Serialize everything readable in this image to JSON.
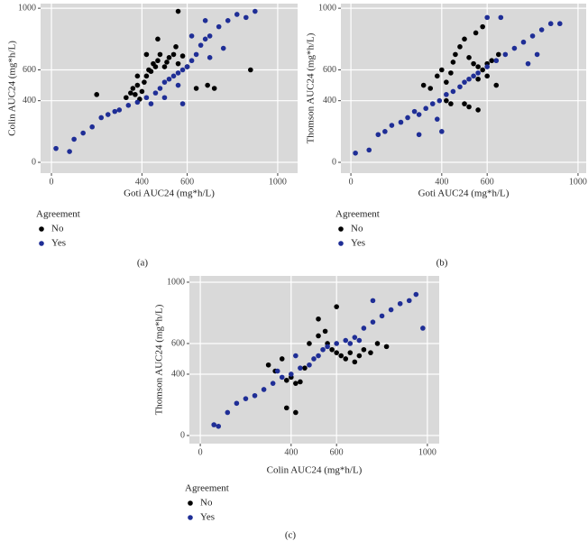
{
  "chart_data": [
    {
      "type": "scatter",
      "label": "(a)",
      "xlabel": "Goti AUC24 (mg*h/L)",
      "ylabel": "Colin AUC24 (mg*h/L)",
      "legend_title": "Agreement",
      "xlim": [
        -48,
        1088
      ],
      "ylim": [
        -70,
        1030
      ],
      "xticks": [
        0,
        400,
        600,
        1000
      ],
      "yticks": [
        0,
        400,
        600,
        1000
      ],
      "grid": true,
      "series": [
        {
          "name": "No",
          "color": "#000000",
          "x": [
            330,
            350,
            360,
            370,
            380,
            390,
            400,
            410,
            420,
            430,
            440,
            450,
            460,
            470,
            480,
            500,
            510,
            520,
            540,
            550,
            560,
            580,
            600,
            200,
            380,
            690,
            720,
            880,
            560,
            640,
            420,
            470
          ],
          "values": [
            420,
            450,
            480,
            440,
            500,
            410,
            460,
            520,
            560,
            600,
            590,
            640,
            620,
            660,
            700,
            620,
            650,
            680,
            700,
            750,
            640,
            690,
            620,
            440,
            560,
            500,
            480,
            600,
            980,
            480,
            700,
            800
          ]
        },
        {
          "name": "Yes",
          "color": "#1f2e96",
          "x": [
            20,
            80,
            100,
            140,
            180,
            220,
            250,
            280,
            300,
            340,
            380,
            420,
            460,
            480,
            500,
            520,
            540,
            560,
            580,
            600,
            620,
            640,
            660,
            680,
            700,
            740,
            780,
            820,
            860,
            900,
            760,
            700,
            440,
            500,
            560,
            620,
            680,
            580
          ],
          "values": [
            90,
            70,
            150,
            190,
            230,
            290,
            310,
            330,
            340,
            370,
            390,
            420,
            450,
            480,
            520,
            540,
            560,
            580,
            600,
            620,
            660,
            700,
            760,
            800,
            820,
            880,
            920,
            960,
            940,
            980,
            740,
            680,
            380,
            420,
            500,
            820,
            920,
            380
          ]
        }
      ]
    },
    {
      "type": "scatter",
      "label": "(b)",
      "xlabel": "Goti AUC24 (mg*h/L)",
      "ylabel": "Thomson AUC24 (mg*h/L)",
      "legend_title": "Agreement",
      "xlim": [
        -44,
        1036
      ],
      "ylim": [
        -70,
        1030
      ],
      "xticks": [
        0,
        400,
        600,
        1000
      ],
      "yticks": [
        0,
        400,
        600,
        1000
      ],
      "grid": true,
      "series": [
        {
          "name": "No",
          "color": "#000000",
          "x": [
            320,
            350,
            380,
            400,
            420,
            440,
            450,
            460,
            480,
            500,
            520,
            540,
            560,
            580,
            600,
            620,
            650,
            600,
            560,
            420,
            440,
            500,
            520,
            560,
            640,
            580,
            550
          ],
          "values": [
            500,
            480,
            560,
            600,
            520,
            580,
            650,
            700,
            750,
            800,
            680,
            640,
            620,
            600,
            640,
            660,
            700,
            560,
            540,
            400,
            380,
            380,
            360,
            340,
            500,
            880,
            840
          ]
        },
        {
          "name": "Yes",
          "color": "#1f2e96",
          "x": [
            20,
            80,
            120,
            150,
            180,
            220,
            250,
            280,
            300,
            330,
            360,
            390,
            420,
            450,
            480,
            500,
            520,
            540,
            560,
            600,
            640,
            680,
            720,
            760,
            800,
            840,
            880,
            920,
            820,
            780,
            600,
            380,
            400,
            660,
            300
          ],
          "values": [
            60,
            80,
            180,
            200,
            240,
            260,
            290,
            330,
            310,
            350,
            380,
            400,
            440,
            460,
            490,
            520,
            540,
            560,
            580,
            620,
            660,
            700,
            740,
            780,
            820,
            860,
            900,
            900,
            700,
            640,
            940,
            280,
            200,
            940,
            180
          ]
        }
      ]
    },
    {
      "type": "scatter",
      "label": "(c)",
      "xlabel": "Colin AUC24 (mg*h/L)",
      "ylabel": "Thomson AUC24 (mg*h/L)",
      "legend_title": "Agreement",
      "xlim": [
        -48,
        1052
      ],
      "ylim": [
        -53,
        1041
      ],
      "xticks": [
        0,
        400,
        600,
        1000
      ],
      "yticks": [
        0,
        400,
        600,
        1000
      ],
      "grid": true,
      "series": [
        {
          "name": "No",
          "color": "#000000",
          "x": [
            300,
            330,
            360,
            380,
            400,
            420,
            440,
            460,
            480,
            520,
            550,
            560,
            580,
            600,
            620,
            640,
            660,
            680,
            700,
            720,
            750,
            780,
            820,
            600,
            380,
            420,
            520
          ],
          "values": [
            460,
            420,
            500,
            360,
            380,
            340,
            350,
            440,
            600,
            650,
            680,
            600,
            560,
            540,
            520,
            500,
            540,
            480,
            520,
            560,
            540,
            600,
            580,
            840,
            180,
            150,
            760
          ]
        },
        {
          "name": "Yes",
          "color": "#1f2e96",
          "x": [
            60,
            80,
            120,
            160,
            200,
            240,
            280,
            320,
            360,
            400,
            440,
            480,
            500,
            520,
            540,
            560,
            600,
            640,
            680,
            720,
            760,
            800,
            840,
            880,
            920,
            950,
            980,
            700,
            660,
            340,
            420,
            760
          ],
          "values": [
            70,
            60,
            150,
            210,
            240,
            260,
            300,
            340,
            380,
            400,
            440,
            460,
            500,
            520,
            560,
            580,
            600,
            620,
            640,
            700,
            740,
            780,
            820,
            860,
            880,
            920,
            700,
            620,
            600,
            420,
            520,
            880
          ]
        }
      ]
    }
  ]
}
